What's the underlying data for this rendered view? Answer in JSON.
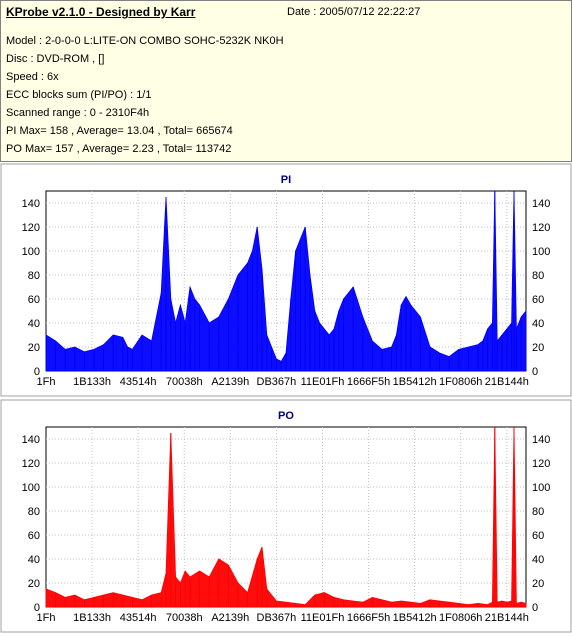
{
  "info": {
    "title": "KProbe v2.1.0 - Designed by Karr",
    "date": "Date : 2005/07/12 22:22:27",
    "lines": [
      "Model : 2-0-0-0 L:LITE-ON COMBO SOHC-5232K NK0H",
      "Disc : DVD-ROM ,  []",
      "Speed : 6x",
      "ECC blocks sum (PI/PO) : 1/1",
      "Scanned range : 0 - 2310F4h",
      "PI Max= 158 , Average= 13.04 , Total= 665674",
      "PO Max= 157 , Average= 2.23 , Total= 113742"
    ]
  },
  "chart_data": [
    {
      "type": "area",
      "title": "PI",
      "color": "#0000ff",
      "ylim": [
        0,
        150
      ],
      "yticks": [
        0,
        20,
        40,
        60,
        80,
        100,
        120,
        140
      ],
      "xticks": [
        "1Fh",
        "1B133h",
        "43514h",
        "70038h",
        "A2139h",
        "DB367h",
        "11E01Fh",
        "1666F5h",
        "1B5412h",
        "1F0806h",
        "21B144h"
      ],
      "xlim": [
        0,
        100
      ],
      "grid": true,
      "series": [
        {
          "x": [
            0,
            2,
            4,
            6,
            8,
            10,
            12,
            14,
            16,
            17,
            18,
            20,
            22,
            24,
            25,
            26,
            27,
            28,
            29,
            30,
            31,
            32,
            34,
            36,
            38,
            40,
            42,
            43,
            44,
            45,
            46,
            47,
            48,
            49,
            50,
            51,
            52,
            53,
            54,
            55,
            56,
            57,
            58,
            59,
            60,
            61,
            62,
            64,
            66,
            68,
            70,
            72,
            73,
            74,
            75,
            76,
            78,
            80,
            82,
            84,
            86,
            88,
            90,
            91,
            92,
            93,
            93.5,
            94,
            95,
            96,
            97,
            97.5,
            98,
            99,
            100
          ],
          "y": [
            30,
            25,
            18,
            20,
            16,
            18,
            22,
            30,
            28,
            20,
            18,
            30,
            25,
            65,
            145,
            60,
            40,
            55,
            40,
            70,
            60,
            55,
            40,
            45,
            60,
            80,
            90,
            100,
            120,
            85,
            30,
            20,
            10,
            8,
            15,
            60,
            100,
            110,
            120,
            80,
            50,
            40,
            35,
            30,
            35,
            50,
            60,
            70,
            45,
            25,
            18,
            20,
            30,
            55,
            62,
            55,
            45,
            20,
            15,
            12,
            18,
            20,
            22,
            25,
            35,
            40,
            155,
            25,
            30,
            35,
            40,
            150,
            35,
            45,
            50
          ]
        }
      ]
    },
    {
      "type": "area",
      "title": "PO",
      "color": "#ff0000",
      "ylim": [
        0,
        150
      ],
      "yticks": [
        0,
        20,
        40,
        60,
        80,
        100,
        120,
        140
      ],
      "xticks": [
        "1Fh",
        "1B133h",
        "43514h",
        "70038h",
        "A2139h",
        "DB367h",
        "11E01Fh",
        "1666F5h",
        "1B5412h",
        "1F0806h",
        "21B144h"
      ],
      "xlim": [
        0,
        100
      ],
      "grid": true,
      "series": [
        {
          "x": [
            0,
            2,
            4,
            6,
            8,
            10,
            12,
            14,
            16,
            18,
            20,
            22,
            24,
            25,
            26,
            27,
            28,
            29,
            30,
            32,
            34,
            36,
            38,
            40,
            42,
            44,
            45,
            46,
            48,
            50,
            52,
            54,
            56,
            58,
            60,
            62,
            64,
            66,
            68,
            70,
            72,
            74,
            76,
            78,
            80,
            82,
            84,
            86,
            88,
            90,
            92,
            93,
            93.5,
            94,
            95,
            96,
            97,
            97.5,
            98,
            99,
            100
          ],
          "y": [
            15,
            12,
            8,
            10,
            6,
            8,
            10,
            12,
            10,
            8,
            6,
            10,
            12,
            28,
            145,
            25,
            20,
            30,
            25,
            30,
            25,
            40,
            35,
            20,
            12,
            40,
            50,
            15,
            5,
            4,
            3,
            2,
            10,
            12,
            8,
            6,
            5,
            4,
            8,
            6,
            4,
            5,
            4,
            3,
            6,
            5,
            4,
            3,
            2,
            3,
            2,
            4,
            157,
            4,
            5,
            4,
            5,
            150,
            3,
            4,
            3
          ]
        }
      ]
    }
  ]
}
